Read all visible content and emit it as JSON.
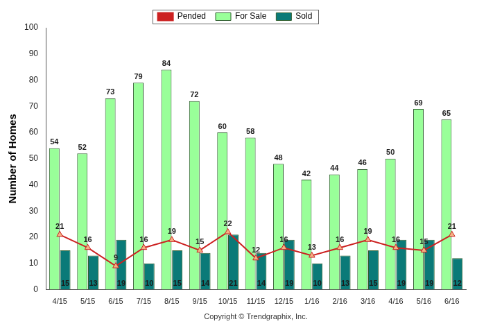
{
  "chart_data": {
    "type": "bar",
    "y_label": "Number of Homes",
    "x_label": "Copyright © Trendgraphix, Inc.",
    "categories": [
      "4/15",
      "5/15",
      "6/15",
      "7/15",
      "8/15",
      "9/15",
      "10/15",
      "11/15",
      "12/15",
      "1/16",
      "2/16",
      "3/16",
      "4/16",
      "5/16",
      "6/16"
    ],
    "series": [
      {
        "name": "For Sale",
        "type": "bar",
        "color": "#99ff99",
        "values": [
          54,
          52,
          73,
          79,
          84,
          72,
          60,
          58,
          48,
          42,
          44,
          46,
          50,
          69,
          65
        ]
      },
      {
        "name": "Sold",
        "type": "bar",
        "color": "#0a7a78",
        "values": [
          15,
          13,
          19,
          10,
          15,
          14,
          21,
          14,
          19,
          10,
          13,
          15,
          19,
          19,
          12
        ]
      },
      {
        "name": "Pended",
        "type": "line",
        "color": "#cc2222",
        "marker": "triangle",
        "values": [
          21,
          16,
          9,
          16,
          19,
          15,
          22,
          12,
          16,
          13,
          16,
          19,
          16,
          15,
          21
        ]
      }
    ],
    "ylim": [
      0,
      100
    ],
    "yticks": [
      0,
      10,
      20,
      30,
      40,
      50,
      60,
      70,
      80,
      90,
      100
    ],
    "grid": false,
    "legend": "top",
    "data_labels": true
  }
}
